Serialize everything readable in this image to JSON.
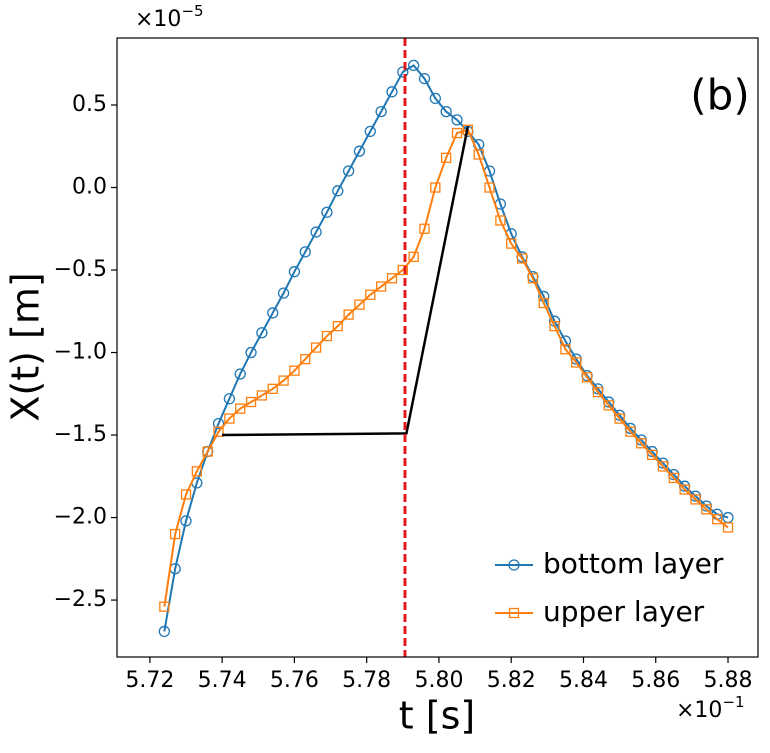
{
  "chart_data": {
    "type": "line",
    "panel_label": "(b)",
    "xlabel": "t [s]",
    "ylabel": "X(t) [m]",
    "x_offset": {
      "base": "×10",
      "exponent": "−1"
    },
    "y_offset": {
      "base": "×10",
      "exponent": "−5"
    },
    "xlim": [
      5.7109,
      5.8883
    ],
    "ylim": [
      -2.845,
      0.906
    ],
    "xticks": [
      5.72,
      5.74,
      5.76,
      5.78,
      {
        "value": 5.8,
        "label": "5.80"
      },
      5.82,
      5.84,
      5.86,
      5.88
    ],
    "yticks": [
      {
        "value": -2.5,
        "label": "−2.5"
      },
      {
        "value": -2.0,
        "label": "−2.0"
      },
      {
        "value": -1.5,
        "label": "−1.5"
      },
      {
        "value": -1.0,
        "label": "−1.0"
      },
      {
        "value": -0.5,
        "label": "−0.5"
      },
      {
        "value": 0.0,
        "label": "0.0"
      },
      0.5
    ],
    "legend": "lower right",
    "x": [
      5.724,
      5.727,
      5.73,
      5.733,
      5.736,
      5.739,
      5.742,
      5.745,
      5.748,
      5.751,
      5.754,
      5.757,
      5.76,
      5.763,
      5.766,
      5.769,
      5.772,
      5.775,
      5.778,
      5.781,
      5.784,
      5.787,
      5.79,
      5.793,
      5.796,
      5.799,
      5.802,
      5.805,
      5.808,
      5.811,
      5.814,
      5.817,
      5.82,
      5.823,
      5.826,
      5.829,
      5.832,
      5.835,
      5.838,
      5.841,
      5.844,
      5.847,
      5.85,
      5.853,
      5.856,
      5.859,
      5.862,
      5.865,
      5.868,
      5.871,
      5.874,
      5.877,
      5.88
    ],
    "series": [
      {
        "name": "bottom layer",
        "color": "#1f77b4",
        "marker": "circle",
        "values": [
          -2.69,
          -2.31,
          -2.02,
          -1.79,
          -1.6,
          -1.43,
          -1.28,
          -1.13,
          -1.0,
          -0.88,
          -0.76,
          -0.64,
          -0.51,
          -0.39,
          -0.27,
          -0.15,
          -0.02,
          0.1,
          0.22,
          0.34,
          0.46,
          0.58,
          0.7,
          0.74,
          0.66,
          0.54,
          0.46,
          0.41,
          0.34,
          0.26,
          0.1,
          -0.1,
          -0.28,
          -0.42,
          -0.54,
          -0.66,
          -0.81,
          -0.93,
          -1.04,
          -1.14,
          -1.22,
          -1.3,
          -1.38,
          -1.46,
          -1.53,
          -1.6,
          -1.67,
          -1.74,
          -1.81,
          -1.87,
          -1.93,
          -1.98,
          -2.0
        ]
      },
      {
        "name": "upper layer",
        "color": "#ff7f0e",
        "marker": "square",
        "values": [
          -2.54,
          -2.1,
          -1.86,
          -1.72,
          -1.6,
          -1.48,
          -1.4,
          -1.34,
          -1.3,
          -1.26,
          -1.22,
          -1.17,
          -1.11,
          -1.04,
          -0.97,
          -0.9,
          -0.84,
          -0.77,
          -0.71,
          -0.65,
          -0.6,
          -0.55,
          -0.5,
          -0.42,
          -0.25,
          0.0,
          0.18,
          0.33,
          0.35,
          0.2,
          0.0,
          -0.2,
          -0.34,
          -0.43,
          -0.55,
          -0.7,
          -0.84,
          -0.98,
          -1.06,
          -1.15,
          -1.24,
          -1.32,
          -1.4,
          -1.48,
          -1.55,
          -1.62,
          -1.69,
          -1.76,
          -1.83,
          -1.89,
          -1.95,
          -2.01,
          -2.06
        ]
      }
    ],
    "guide_line": {
      "color": "#000000",
      "x": [
        5.74,
        5.791,
        5.808
      ],
      "y": [
        -1.5,
        -1.49,
        0.37
      ]
    },
    "vline": {
      "x": 5.7906,
      "color": "#e31a1c",
      "dashed": true
    }
  }
}
